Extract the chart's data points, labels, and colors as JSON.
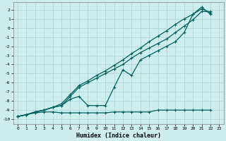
{
  "xlabel": "Humidex (Indice chaleur)",
  "bg_color": "#ceeeed",
  "line_color": "#006060",
  "grid_color_major": "#aad4d4",
  "grid_color_minor": "#bbdddd",
  "xlim": [
    -0.5,
    23.5
  ],
  "ylim": [
    -10.5,
    2.8
  ],
  "xticks": [
    0,
    1,
    2,
    3,
    4,
    5,
    6,
    7,
    8,
    9,
    10,
    11,
    12,
    13,
    14,
    15,
    16,
    17,
    18,
    19,
    20,
    21,
    22,
    23
  ],
  "yticks": [
    2,
    1,
    0,
    -1,
    -2,
    -3,
    -4,
    -5,
    -6,
    -7,
    -8,
    -9,
    -10
  ],
  "line_a_x": [
    0,
    1,
    2,
    3,
    4,
    5,
    6,
    7,
    8,
    9,
    10,
    11,
    12,
    13,
    14,
    15,
    16,
    17,
    18,
    19,
    20,
    21,
    22
  ],
  "line_a_y": [
    -9.7,
    -9.5,
    -9.3,
    -9.2,
    -9.2,
    -9.3,
    -9.3,
    -9.3,
    -9.3,
    -9.3,
    -9.3,
    -9.2,
    -9.2,
    -9.2,
    -9.2,
    -9.2,
    -9.0,
    -9.0,
    -9.0,
    -9.0,
    -9.0,
    -9.0,
    -9.0
  ],
  "line_b_x": [
    0,
    1,
    2,
    3,
    4,
    5,
    6,
    7,
    8,
    9,
    10,
    11,
    12,
    13,
    14,
    15,
    16,
    17,
    18,
    19,
    20,
    21,
    22
  ],
  "line_b_y": [
    -9.7,
    -9.5,
    -9.2,
    -9.0,
    -8.7,
    -8.5,
    -7.8,
    -7.5,
    -8.5,
    -8.5,
    -8.5,
    -6.5,
    -4.6,
    -5.2,
    -3.5,
    -3.0,
    -2.5,
    -2.0,
    -1.5,
    -0.5,
    1.5,
    2.3,
    1.5
  ],
  "line_c_x": [
    0,
    1,
    2,
    3,
    4,
    5,
    6,
    7,
    8,
    9,
    10,
    11,
    12,
    13,
    14,
    15,
    16,
    17,
    18,
    19,
    20,
    21,
    22
  ],
  "line_c_y": [
    -9.7,
    -9.5,
    -9.2,
    -9.0,
    -8.7,
    -8.5,
    -7.5,
    -6.5,
    -6.0,
    -5.5,
    -5.0,
    -4.5,
    -4.0,
    -3.3,
    -2.7,
    -2.2,
    -1.7,
    -1.2,
    -0.5,
    0.2,
    0.9,
    1.8,
    1.8
  ],
  "line_d_x": [
    0,
    1,
    2,
    3,
    4,
    5,
    6,
    7,
    8,
    9,
    10,
    11,
    12,
    13,
    14,
    15,
    16,
    17,
    18,
    19,
    20,
    21,
    22
  ],
  "line_d_y": [
    -9.7,
    -9.5,
    -9.2,
    -9.0,
    -8.7,
    -8.3,
    -7.3,
    -6.3,
    -5.8,
    -5.2,
    -4.7,
    -4.1,
    -3.5,
    -2.8,
    -2.2,
    -1.5,
    -0.9,
    -0.3,
    0.4,
    1.0,
    1.5,
    2.1,
    1.7
  ]
}
